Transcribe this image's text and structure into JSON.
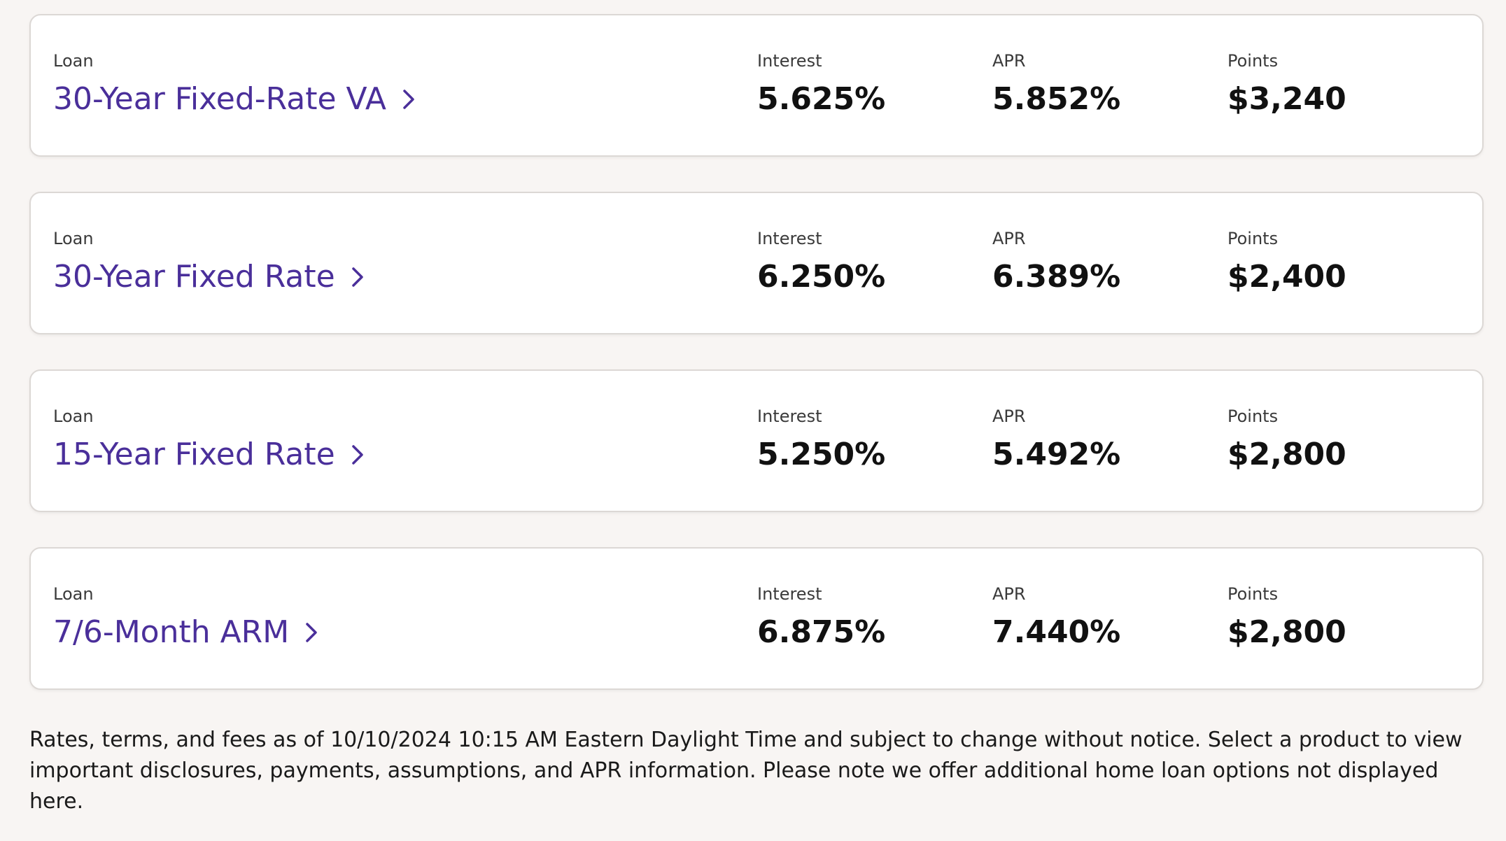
{
  "colors": {
    "background": "#f8f5f3",
    "card": "#ffffff",
    "link": "#4a2f9a",
    "text": "#111111"
  },
  "loans": [
    {
      "loan_label": "Loan",
      "name": "30-Year Fixed-Rate VA",
      "interest_label": "Interest",
      "interest": "5.625%",
      "apr_label": "APR",
      "apr": "5.852%",
      "points_label": "Points",
      "points": "$3,240",
      "icon": "chevron-right-icon"
    },
    {
      "loan_label": "Loan",
      "name": "30-Year Fixed Rate",
      "interest_label": "Interest",
      "interest": "6.250%",
      "apr_label": "APR",
      "apr": "6.389%",
      "points_label": "Points",
      "points": "$2,400",
      "icon": "chevron-right-icon"
    },
    {
      "loan_label": "Loan",
      "name": "15-Year Fixed Rate",
      "interest_label": "Interest",
      "interest": "5.250%",
      "apr_label": "APR",
      "apr": "5.492%",
      "points_label": "Points",
      "points": "$2,800",
      "icon": "chevron-right-icon"
    },
    {
      "loan_label": "Loan",
      "name": "7/6-Month ARM",
      "interest_label": "Interest",
      "interest": "6.875%",
      "apr_label": "APR",
      "apr": "7.440%",
      "points_label": "Points",
      "points": "$2,800",
      "icon": "chevron-right-icon"
    }
  ],
  "disclaimer": "Rates, terms, and fees as of 10/10/2024 10:15 AM Eastern Daylight Time and subject to change without notice. Select a product to view important disclosures, payments, assumptions, and APR information. Please note we offer additional home loan options not displayed here."
}
